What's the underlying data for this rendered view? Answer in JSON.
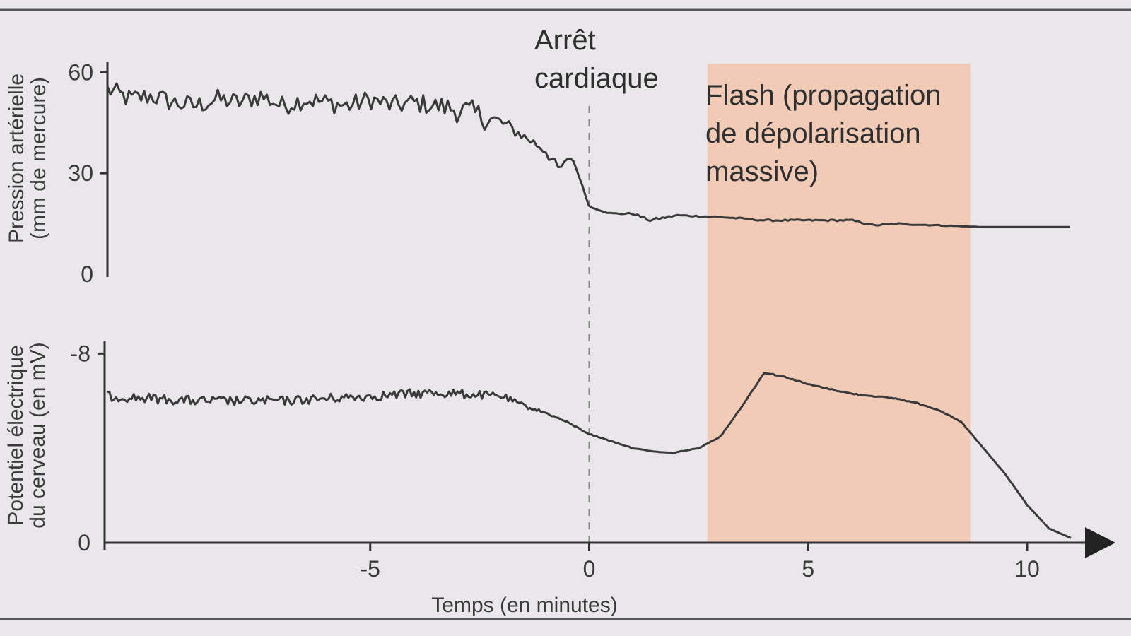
{
  "chart_data": [
    {
      "type": "line",
      "ylabel_line1": "Pression artérielle",
      "ylabel_line2": "(mm de mercure)",
      "y_ticks": [
        "60",
        "30",
        "0"
      ],
      "y_tick_values": [
        60,
        30,
        0
      ],
      "ylim": [
        0,
        63
      ],
      "xlim": [
        -11,
        11
      ],
      "series": [
        {
          "x": [
            -11,
            -10.5,
            -10,
            -9.5,
            -9,
            -8.5,
            -8,
            -7.5,
            -7,
            -6.5,
            -6,
            -5.5,
            -5,
            -4.5,
            -4,
            -3.5,
            -3,
            -2.5,
            -2,
            -1.5,
            -1,
            -0.7,
            -0.4,
            -0.2,
            0,
            0.5,
            1,
            1.4,
            2,
            3,
            4,
            5,
            6,
            6.5,
            7,
            8,
            9,
            10,
            11
          ],
          "y": [
            55,
            52,
            53,
            51,
            50,
            52,
            51,
            53,
            50,
            52,
            51,
            50,
            52,
            50,
            51,
            50,
            49,
            47,
            45,
            41,
            37,
            31,
            35,
            28,
            20,
            18,
            18,
            16,
            17.5,
            17,
            16,
            16,
            16,
            14.5,
            15,
            14.5,
            14,
            14,
            14
          ],
          "noise": [
            6,
            6,
            6,
            6,
            6,
            6,
            6,
            6,
            6,
            6,
            6,
            6,
            6,
            6,
            6,
            6,
            8,
            8,
            5,
            3,
            4,
            3,
            1,
            0.5,
            0,
            0.5,
            0.5,
            1,
            0.5,
            0.5,
            0.5,
            0.5,
            0.5,
            0.5,
            0.5,
            0.3,
            0,
            0,
            0
          ]
        }
      ]
    },
    {
      "type": "line",
      "ylabel_line1": "Potentiel électrique",
      "ylabel_line2": "du cerveau (en mV)",
      "y_ticks": [
        "-8",
        "0"
      ],
      "y_tick_values": [
        -8,
        0
      ],
      "ylim": [
        0,
        -8.4
      ],
      "xlabel": "Temps (en minutes)",
      "x_ticks": [
        "-5",
        "0",
        "5",
        "10"
      ],
      "x_tick_values": [
        -5,
        0,
        5,
        10
      ],
      "xlim": [
        -11,
        11
      ],
      "series": [
        {
          "x": [
            -11,
            -10,
            -9,
            -8,
            -7,
            -6,
            -5,
            -4,
            -3.5,
            -3,
            -2,
            -1.5,
            -1,
            -0.5,
            0,
            0.5,
            1,
            1.5,
            1.9,
            2.5,
            3,
            3.5,
            4,
            4.5,
            5,
            5.5,
            6,
            7,
            7.5,
            8,
            8.5,
            9,
            9.5,
            10,
            10.5,
            11
          ],
          "y": [
            -6.2,
            -6.1,
            -6.0,
            -6.0,
            -6.0,
            -6.1,
            -6.2,
            -6.3,
            -6.35,
            -6.3,
            -6.2,
            -5.8,
            -5.5,
            -5.1,
            -4.6,
            -4.3,
            -4.0,
            -3.85,
            -3.8,
            -4.0,
            -4.5,
            -5.8,
            -7.2,
            -7.0,
            -6.7,
            -6.5,
            -6.3,
            -6.1,
            -5.9,
            -5.6,
            -5.1,
            -4.0,
            -2.9,
            -1.6,
            -0.6,
            -0.2
          ],
          "noise": [
            0.4,
            0.4,
            0.4,
            0.4,
            0.4,
            0.4,
            0.4,
            0.4,
            0.4,
            0.4,
            0.3,
            0.2,
            0.08,
            0.05,
            0.05,
            0.03,
            0.02,
            0.02,
            0.02,
            0.02,
            0.03,
            0.03,
            0.05,
            0.05,
            0.05,
            0.05,
            0.05,
            0.04,
            0.04,
            0.03,
            0.03,
            0.02,
            0.02,
            0.02,
            0.01,
            0
          ]
        }
      ]
    }
  ],
  "annotations": {
    "arret_line1": "Arrêt",
    "arret_line2": "cardiaque",
    "flash_line1": "Flash (propagation",
    "flash_line2": "de dépolarisation",
    "flash_line3": "massive)",
    "flash_x_start": 2.7,
    "flash_x_end": 8.7
  },
  "colors": {
    "trace": "#3a3a3a",
    "flash_band": "#f2c6ad",
    "background": "#e9e7ea",
    "frame": "#555555",
    "event_line": "#888888"
  }
}
